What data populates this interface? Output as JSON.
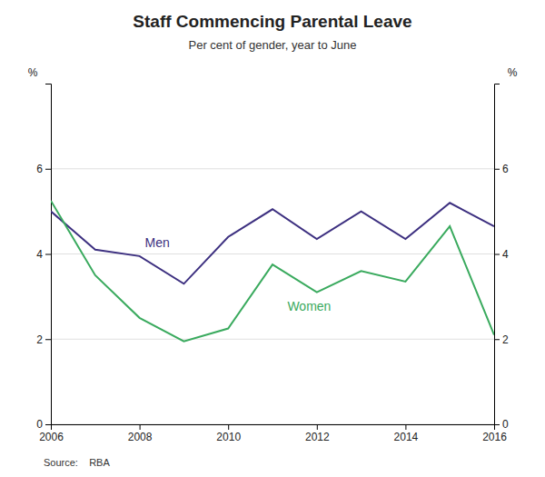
{
  "chart_data": {
    "type": "line",
    "title": "Staff Commencing Parental Leave",
    "subtitle": "Per cent of gender, year to June",
    "source": "Source:    RBA",
    "x": [
      2006,
      2007,
      2008,
      2009,
      2010,
      2011,
      2012,
      2013,
      2014,
      2015,
      2016
    ],
    "series": [
      {
        "name": "Men",
        "color": "#3d3080",
        "values": [
          5.0,
          4.1,
          3.95,
          3.3,
          4.4,
          5.05,
          4.35,
          5.0,
          4.35,
          5.2,
          4.65
        ]
      },
      {
        "name": "Women",
        "color": "#3aaa5e",
        "values": [
          5.25,
          3.5,
          2.5,
          1.95,
          2.25,
          3.75,
          3.1,
          3.6,
          3.35,
          4.65,
          2.1
        ]
      }
    ],
    "xlim": [
      2006,
      2016
    ],
    "xticks": [
      2006,
      2008,
      2010,
      2012,
      2014,
      2016
    ],
    "ylim": [
      0,
      8
    ],
    "yticks": [
      0,
      2,
      4,
      6
    ],
    "y2lim": [
      0,
      8
    ],
    "y2ticks": [
      0,
      2,
      4,
      6
    ],
    "ylabel": "%",
    "y2label": "%",
    "grid": true
  }
}
